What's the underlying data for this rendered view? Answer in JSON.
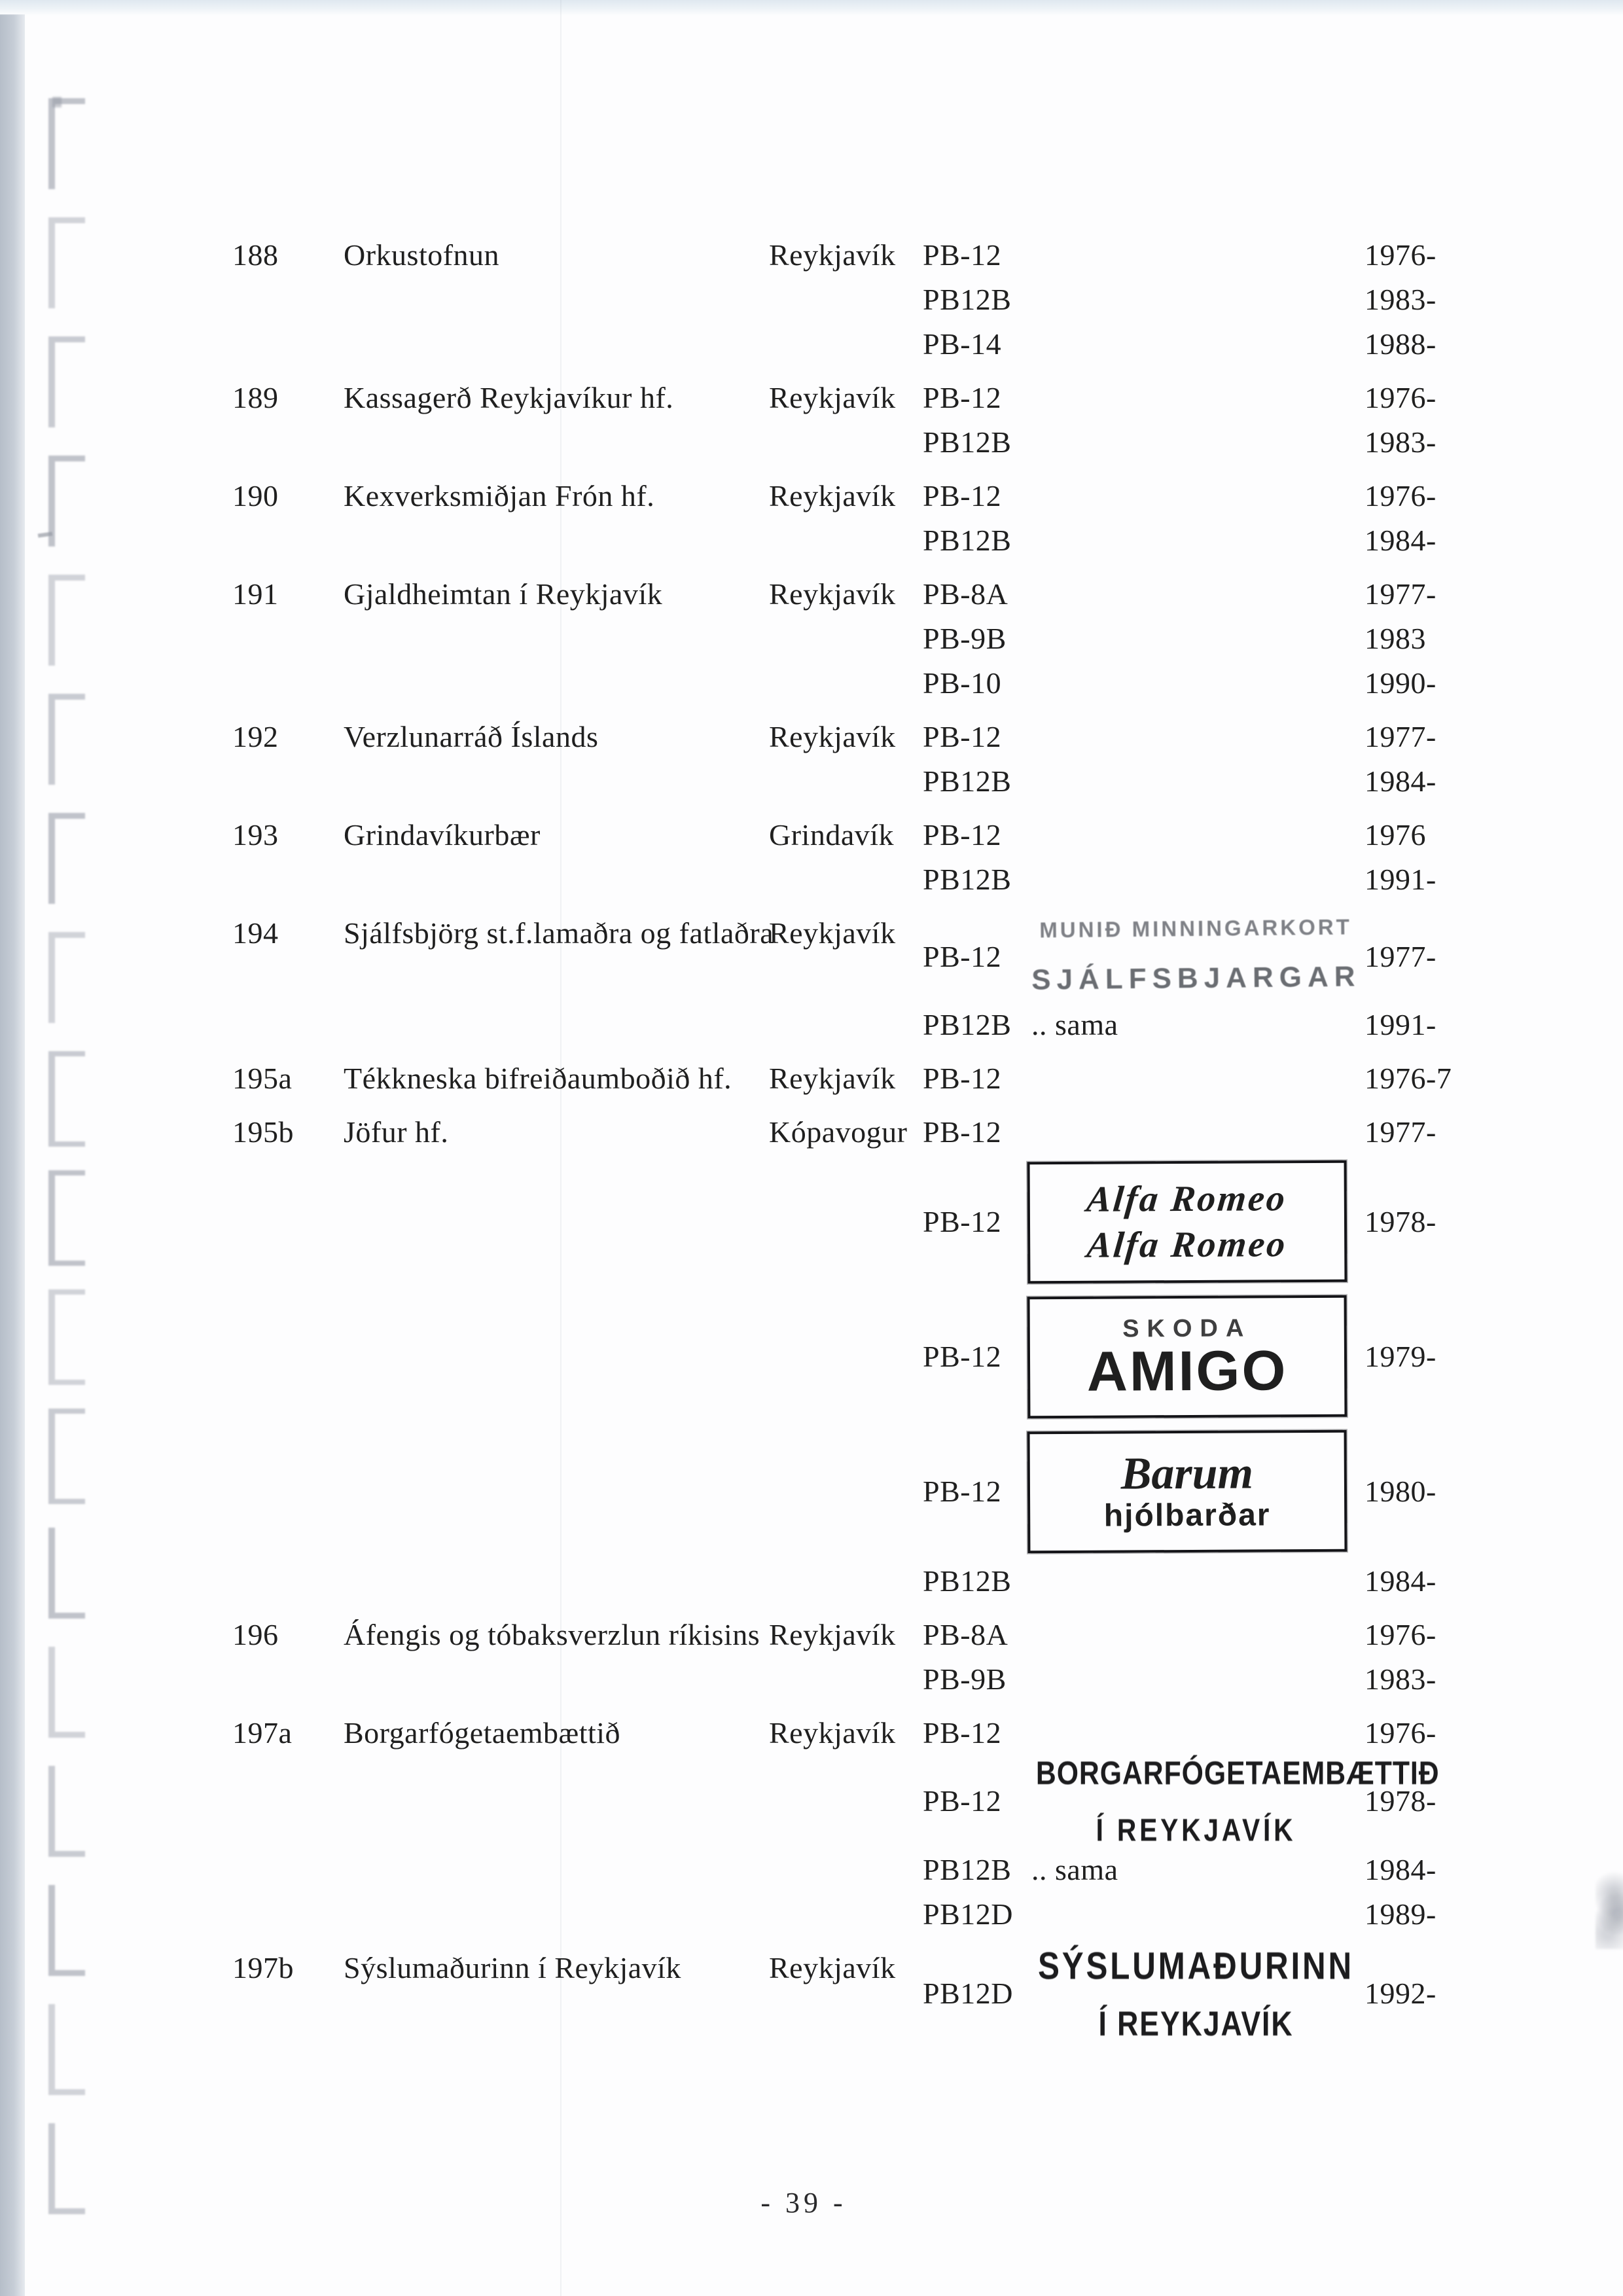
{
  "page": {
    "number_label": "- 39 -"
  },
  "colors": {
    "ink": "#1f1f1f",
    "stamp_gray": "#4a4e54",
    "stamp_dark": "#1c1c1e",
    "edge_strip": "#bcc4ce",
    "binding_mark": "#959aa6"
  },
  "entries": [
    {
      "id": "188",
      "name": "Orkustofnun",
      "city": "Reykjavík",
      "lines": [
        {
          "code": "PB-12",
          "year": "1976-"
        },
        {
          "code": "PB12B",
          "year": "1983-"
        },
        {
          "code": "PB-14",
          "year": "1988-"
        }
      ]
    },
    {
      "id": "189",
      "name": "Kassagerð Reykjavíkur hf.",
      "city": "Reykjavík",
      "lines": [
        {
          "code": "PB-12",
          "year": "1976-"
        },
        {
          "code": "PB12B",
          "year": "1983-"
        }
      ]
    },
    {
      "id": "190",
      "name": "Kexverksmiðjan Frón hf.",
      "city": "Reykjavík",
      "lines": [
        {
          "code": "PB-12",
          "year": "1976-"
        },
        {
          "code": "PB12B",
          "year": "1984-"
        }
      ]
    },
    {
      "id": "191",
      "name": "Gjaldheimtan í Reykjavík",
      "city": "Reykjavík",
      "lines": [
        {
          "code": "PB-8A",
          "year": "1977-"
        },
        {
          "code": "PB-9B",
          "year": "1983"
        },
        {
          "code": "PB-10",
          "year": "1990-"
        }
      ]
    },
    {
      "id": "192",
      "name": "Verzlunarráð Íslands",
      "city": "Reykjavík",
      "lines": [
        {
          "code": "PB-12",
          "year": "1977-"
        },
        {
          "code": "PB12B",
          "year": "1984-"
        }
      ]
    },
    {
      "id": "193",
      "name": "Grindavíkurbær",
      "city": "Grindavík",
      "lines": [
        {
          "code": "PB-12",
          "year": "1976"
        },
        {
          "code": "PB12B",
          "year": "1991-"
        }
      ]
    },
    {
      "id": "194",
      "name": "Sjálfsbjörg st.f.lamaðra og fatlaðra",
      "city": "Reykjavík",
      "lines": [
        {
          "code": "PB-12",
          "year": "1977-",
          "stamp": {
            "kind": "gray-caps",
            "lines": [
              "MUNIÐ MINNINGARKORT",
              "SJÁLFSBJARGAR"
            ]
          }
        },
        {
          "code": "PB12B",
          "note": ".. sama",
          "year": "1991-"
        }
      ]
    },
    {
      "id": "195a",
      "name": "Tékkneska bifreiðaumboðið hf.",
      "city": "Reykjavík",
      "lines": [
        {
          "code": "PB-12",
          "year": "1976-7"
        }
      ]
    },
    {
      "id": "195b",
      "name": "Jöfur hf.",
      "city": "Kópavogur",
      "lines": [
        {
          "code": "PB-12",
          "year": "1977-"
        },
        {
          "code": "PB-12",
          "year": "1978-",
          "stamp": {
            "kind": "box-script",
            "lines": [
              "Alfa Romeo",
              "Alfa Romeo"
            ]
          }
        },
        {
          "code": "PB-12",
          "year": "1979-",
          "stamp": {
            "kind": "box-skoda",
            "lines": [
              "SKODA",
              "AMIGO"
            ]
          }
        },
        {
          "code": "PB-12",
          "year": "1980-",
          "stamp": {
            "kind": "box-barum",
            "lines": [
              "Barum",
              "hjólbarðar"
            ]
          }
        },
        {
          "code": "PB12B",
          "year": "1984-"
        }
      ]
    },
    {
      "id": "196",
      "name": "Áfengis og tóbaksverzlun ríkisins",
      "city": "Reykjavík",
      "lines": [
        {
          "code": "PB-8A",
          "year": "1976-"
        },
        {
          "code": "PB-9B",
          "year": "1983-"
        }
      ]
    },
    {
      "id": "197a",
      "name": "Borgarfógetaembættið",
      "city": "Reykjavík",
      "lines": [
        {
          "code": "PB-12",
          "year": "1976-"
        },
        {
          "code": "PB-12",
          "year": "1978-",
          "stamp": {
            "kind": "dark-caps",
            "lines": [
              "BORGARFÓGETAEMBÆTTIÐ",
              "Í REYKJAVÍK"
            ]
          }
        },
        {
          "code": "PB12B",
          "note": ".. sama",
          "year": "1984-"
        },
        {
          "code": "PB12D",
          "year": "1989-"
        }
      ]
    },
    {
      "id": "197b",
      "name": "Sýslumaðurinn í Reykjavík",
      "city": "Reykjavík",
      "lines": [
        {
          "code": "PB12D",
          "year": "1992-",
          "stamp": {
            "kind": "dark-caps-large",
            "lines": [
              "SÝSLUMAÐURINN",
              "Í REYKJAVÍK"
            ]
          }
        }
      ]
    }
  ]
}
